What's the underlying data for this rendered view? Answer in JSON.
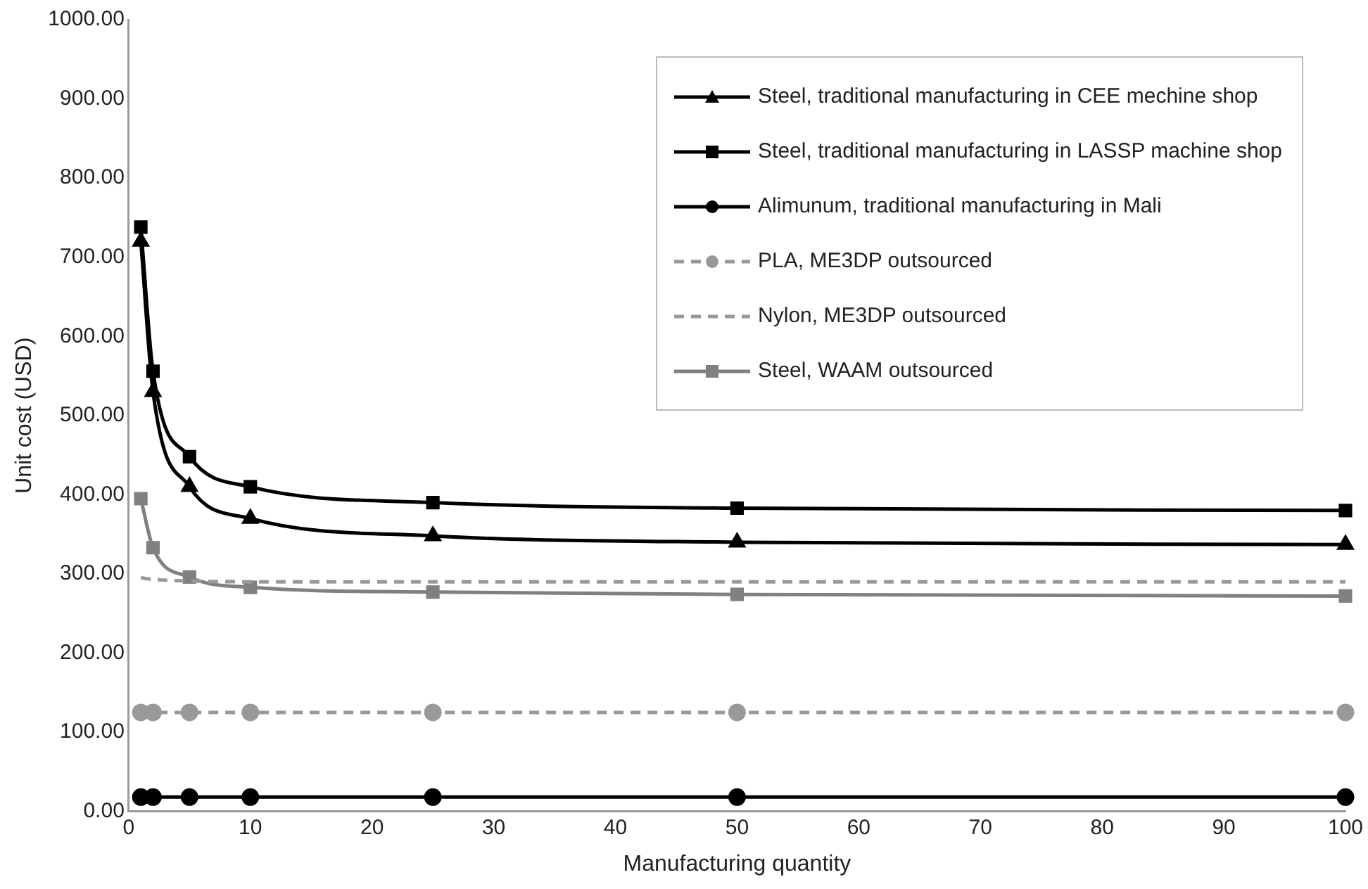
{
  "chart_data": {
    "type": "line",
    "xlabel": "Manufacturing quantity",
    "ylabel": "Unit cost (USD)",
    "x": [
      1,
      2,
      5,
      10,
      25,
      50,
      100
    ],
    "xlim": [
      0,
      100
    ],
    "xticks": [
      0,
      10,
      20,
      30,
      40,
      50,
      60,
      70,
      80,
      90,
      100
    ],
    "ylim": [
      0,
      1000
    ],
    "yticks": [
      {
        "value": 0,
        "label": "0.00"
      },
      {
        "value": 100,
        "label": "100.00"
      },
      {
        "value": 200,
        "label": "200.00"
      },
      {
        "value": 300,
        "label": "300.00"
      },
      {
        "value": 400,
        "label": "400.00"
      },
      {
        "value": 500,
        "label": "500.00"
      },
      {
        "value": 600,
        "label": "600.00"
      },
      {
        "value": 700,
        "label": "700.00"
      },
      {
        "value": 800,
        "label": "800.00"
      },
      {
        "value": 900,
        "label": "900.00"
      },
      {
        "value": 1000,
        "label": "1000.00"
      }
    ],
    "grid": false,
    "legend": "top right",
    "series": [
      {
        "name": "Steel, traditional manufacturing in CEE mechine shop",
        "color": "#000000",
        "marker": "triangle",
        "line_style": "solid",
        "values": [
          720,
          530,
          410,
          370,
          348,
          340,
          337
        ]
      },
      {
        "name": "Steel, traditional manufacturing in LASSP machine shop",
        "color": "#000000",
        "marker": "square",
        "line_style": "solid",
        "values": [
          738,
          556,
          448,
          410,
          390,
          383,
          380
        ]
      },
      {
        "name": "Alimunum, traditional manufacturing in Mali",
        "color": "#000000",
        "marker": "circle",
        "line_style": "solid",
        "values": [
          18,
          18,
          18,
          18,
          18,
          18,
          18
        ]
      },
      {
        "name": "PLA, ME3DP outsourced",
        "color": "#999999",
        "marker": "circle",
        "line_style": "dashed",
        "values": [
          125,
          125,
          125,
          125,
          125,
          125,
          125
        ]
      },
      {
        "name": "Nylon, ME3DP outsourced",
        "color": "#999999",
        "marker": "none",
        "line_style": "dashed",
        "values": [
          295,
          293,
          291,
          290,
          290,
          290,
          290
        ]
      },
      {
        "name": "Steel, WAAM outsourced",
        "color": "#808080",
        "marker": "square",
        "line_style": "solid",
        "values": [
          395,
          333,
          296,
          283,
          277,
          274,
          272
        ]
      }
    ]
  }
}
